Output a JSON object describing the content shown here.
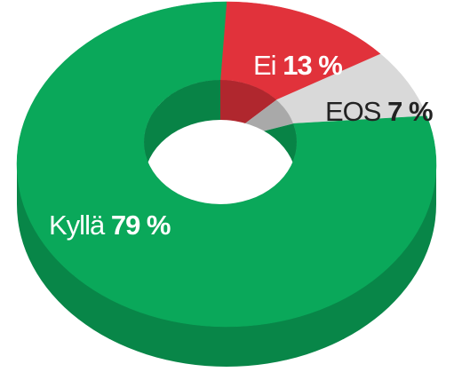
{
  "chart_data": {
    "type": "donut",
    "categories": [
      "Kyllä",
      "Ei",
      "EOS"
    ],
    "values": [
      79,
      13,
      7
    ],
    "value_labels": [
      "79 %",
      "13 %",
      "7 %"
    ],
    "colors": [
      "#0aa85a",
      "#e1323b",
      "#d9d9d9"
    ],
    "start": "top",
    "direction": "counterclockwise-from-red"
  }
}
